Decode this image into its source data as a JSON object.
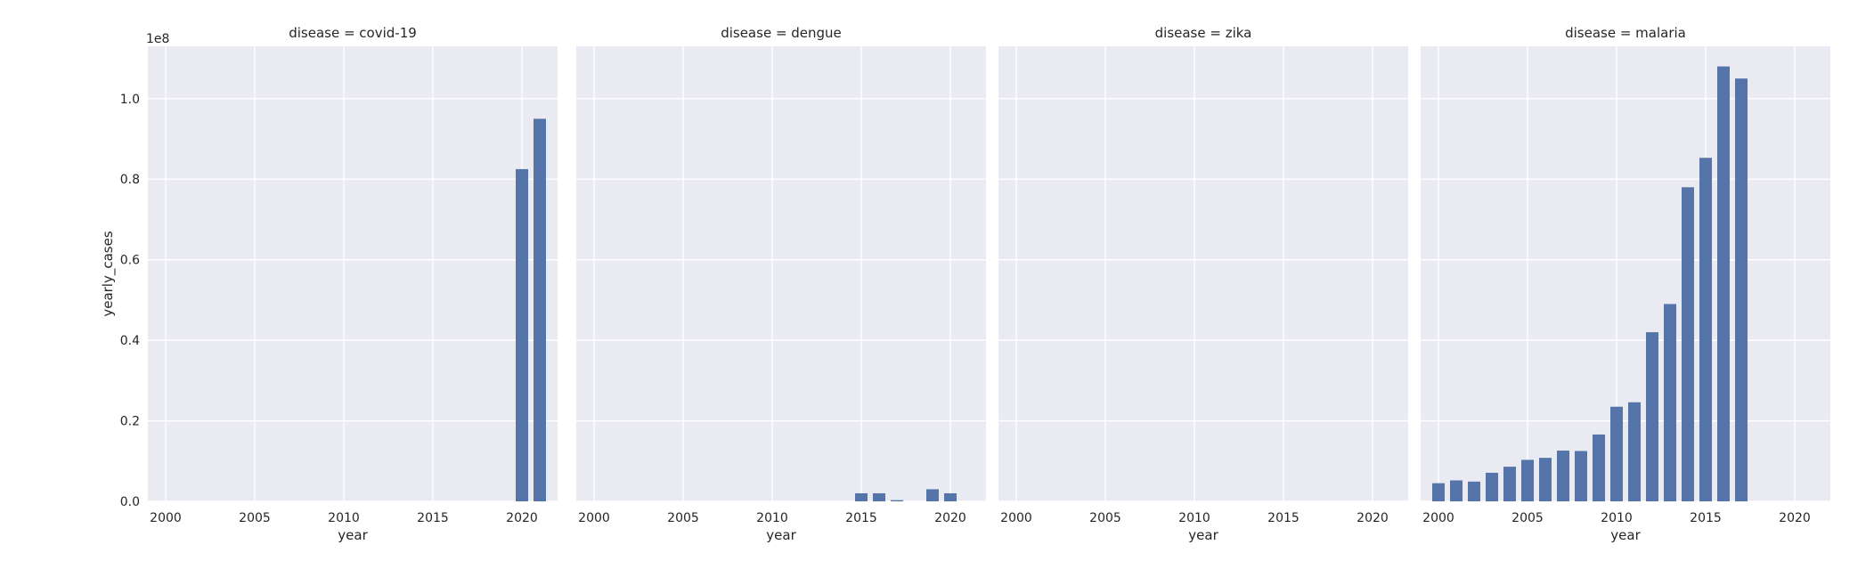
{
  "chart_data": {
    "type": "bar",
    "layout": "facet-grid",
    "sharey": true,
    "xlabel": "year",
    "ylabel": "yearly_cases",
    "y_offset_label": "1e8",
    "y_scale_factor": 100000000,
    "xlim": [
      1999,
      2022
    ],
    "ylim": [
      0,
      113000000
    ],
    "x_ticks": [
      2000,
      2005,
      2010,
      2015,
      2020
    ],
    "y_ticks": [
      0.0,
      0.2,
      0.4,
      0.6,
      0.8,
      1.0
    ],
    "y_tick_labels": [
      "0.0",
      "0.2",
      "0.4",
      "0.6",
      "0.8",
      "1.0"
    ],
    "grid": true,
    "colors": {
      "bar": "#5574aa",
      "panel_bg": "#eaeaf2",
      "grid": "#ffffff",
      "text": "#262626"
    },
    "facets": [
      {
        "title": "disease = covid-19",
        "x": [
          2020,
          2021
        ],
        "values": [
          82500000,
          95000000
        ]
      },
      {
        "title": "disease = dengue",
        "x": [
          2015,
          2016,
          2017,
          2019,
          2020
        ],
        "values": [
          2000000,
          2000000,
          300000,
          3000000,
          2000000
        ]
      },
      {
        "title": "disease = zika",
        "x": [],
        "values": []
      },
      {
        "title": "disease = malaria",
        "x": [
          2000,
          2001,
          2002,
          2003,
          2004,
          2005,
          2006,
          2007,
          2008,
          2009,
          2010,
          2011,
          2012,
          2013,
          2014,
          2015,
          2016,
          2017
        ],
        "values": [
          4500000,
          5200000,
          4900000,
          7100000,
          8600000,
          10300000,
          10800000,
          12600000,
          12500000,
          16600000,
          23500000,
          24600000,
          42000000,
          49000000,
          78000000,
          85300000,
          108000000,
          105000000
        ]
      }
    ]
  }
}
